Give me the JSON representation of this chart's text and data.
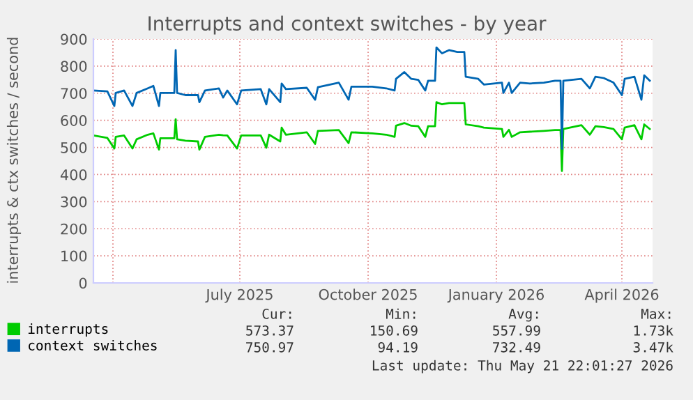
{
  "chart_data": {
    "type": "line",
    "title": "Interrupts and context switches - by year",
    "ylabel": "interrupts & ctx switches / second",
    "x": [
      "2025-03-18",
      "2025-03-28",
      "2025-04-02",
      "2025-04-03",
      "2025-04-09",
      "2025-04-15",
      "2025-04-18",
      "2025-04-26",
      "2025-04-30",
      "2025-05-04",
      "2025-05-05",
      "2025-05-15",
      "2025-05-16",
      "2025-05-17",
      "2025-05-23",
      "2025-06-01",
      "2025-06-02",
      "2025-06-06",
      "2025-06-16",
      "2025-06-19",
      "2025-06-22",
      "2025-06-29",
      "2025-07-02",
      "2025-07-16",
      "2025-07-20",
      "2025-07-22",
      "2025-07-30",
      "2025-07-31",
      "2025-08-03",
      "2025-08-18",
      "2025-08-24",
      "2025-08-26",
      "2025-09-10",
      "2025-09-17",
      "2025-09-19",
      "2025-10-04",
      "2025-10-14",
      "2025-10-20",
      "2025-10-21",
      "2025-10-27",
      "2025-11-01",
      "2025-11-06",
      "2025-11-11",
      "2025-11-13",
      "2025-11-18",
      "2025-11-19",
      "2025-11-23",
      "2025-11-28",
      "2025-12-04",
      "2025-12-09",
      "2025-12-10",
      "2025-12-19",
      "2025-12-23",
      "2026-01-05",
      "2026-01-06",
      "2026-01-10",
      "2026-01-12",
      "2026-01-18",
      "2026-01-25",
      "2026-02-04",
      "2026-02-12",
      "2026-02-16",
      "2026-02-17",
      "2026-02-18",
      "2026-03-03",
      "2026-03-09",
      "2026-03-13",
      "2026-03-19",
      "2026-03-26",
      "2026-04-01",
      "2026-04-03",
      "2026-04-10",
      "2026-04-15",
      "2026-04-17",
      "2026-04-21"
    ],
    "series": [
      {
        "name": "interrupts",
        "color": "#00cc00",
        "values": [
          544,
          535,
          496,
          539,
          544,
          496,
          530,
          547,
          552,
          492,
          534,
          534,
          604,
          530,
          525,
          522,
          492,
          539,
          547,
          545,
          544,
          496,
          544,
          544,
          499,
          547,
          522,
          573,
          547,
          556,
          513,
          561,
          564,
          516,
          556,
          552,
          547,
          539,
          580,
          590,
          580,
          578,
          539,
          578,
          578,
          667,
          659,
          664,
          664,
          664,
          585,
          578,
          573,
          568,
          539,
          565,
          539,
          556,
          558,
          561,
          564,
          564,
          413,
          568,
          582,
          547,
          578,
          575,
          568,
          530,
          573,
          582,
          530,
          585,
          568
        ]
      },
      {
        "name": "context switches",
        "color": "#0066b3",
        "values": [
          710,
          707,
          653,
          701,
          710,
          653,
          701,
          718,
          727,
          653,
          701,
          701,
          859,
          701,
          693,
          693,
          667,
          710,
          718,
          684,
          710,
          659,
          710,
          715,
          659,
          715,
          667,
          736,
          715,
          720,
          676,
          722,
          739,
          676,
          724,
          724,
          718,
          710,
          753,
          778,
          753,
          749,
          710,
          746,
          746,
          869,
          847,
          859,
          852,
          852,
          761,
          753,
          732,
          739,
          701,
          739,
          701,
          739,
          736,
          739,
          746,
          746,
          495,
          746,
          753,
          718,
          761,
          756,
          739,
          693,
          753,
          761,
          676,
          766,
          746
        ]
      }
    ],
    "xlim": [
      "2025-03-18",
      "2026-04-23"
    ],
    "xticks": [
      {
        "value": "2025-04-01",
        "label": null
      },
      {
        "value": "2025-07-01",
        "label": "July 2025"
      },
      {
        "value": "2025-10-01",
        "label": "October 2025"
      },
      {
        "value": "2026-01-01",
        "label": "January 2026"
      },
      {
        "value": "2026-04-01",
        "label": "April 2026"
      }
    ],
    "ylim": [
      0,
      900
    ],
    "yticks": [
      0,
      100,
      200,
      300,
      400,
      500,
      600,
      700,
      800,
      900
    ],
    "grid": true,
    "legend": "bottom",
    "marker": "none",
    "line_style": "solid",
    "annotations": [
      "Cur:",
      "Min:",
      "Avg:",
      "Max:",
      "573.37",
      "150.69",
      "557.99",
      "1.73k",
      "750.97",
      "94.19",
      "732.49",
      "3.47k",
      "Last update: Thu May 21 22:01:27 2026"
    ]
  }
}
